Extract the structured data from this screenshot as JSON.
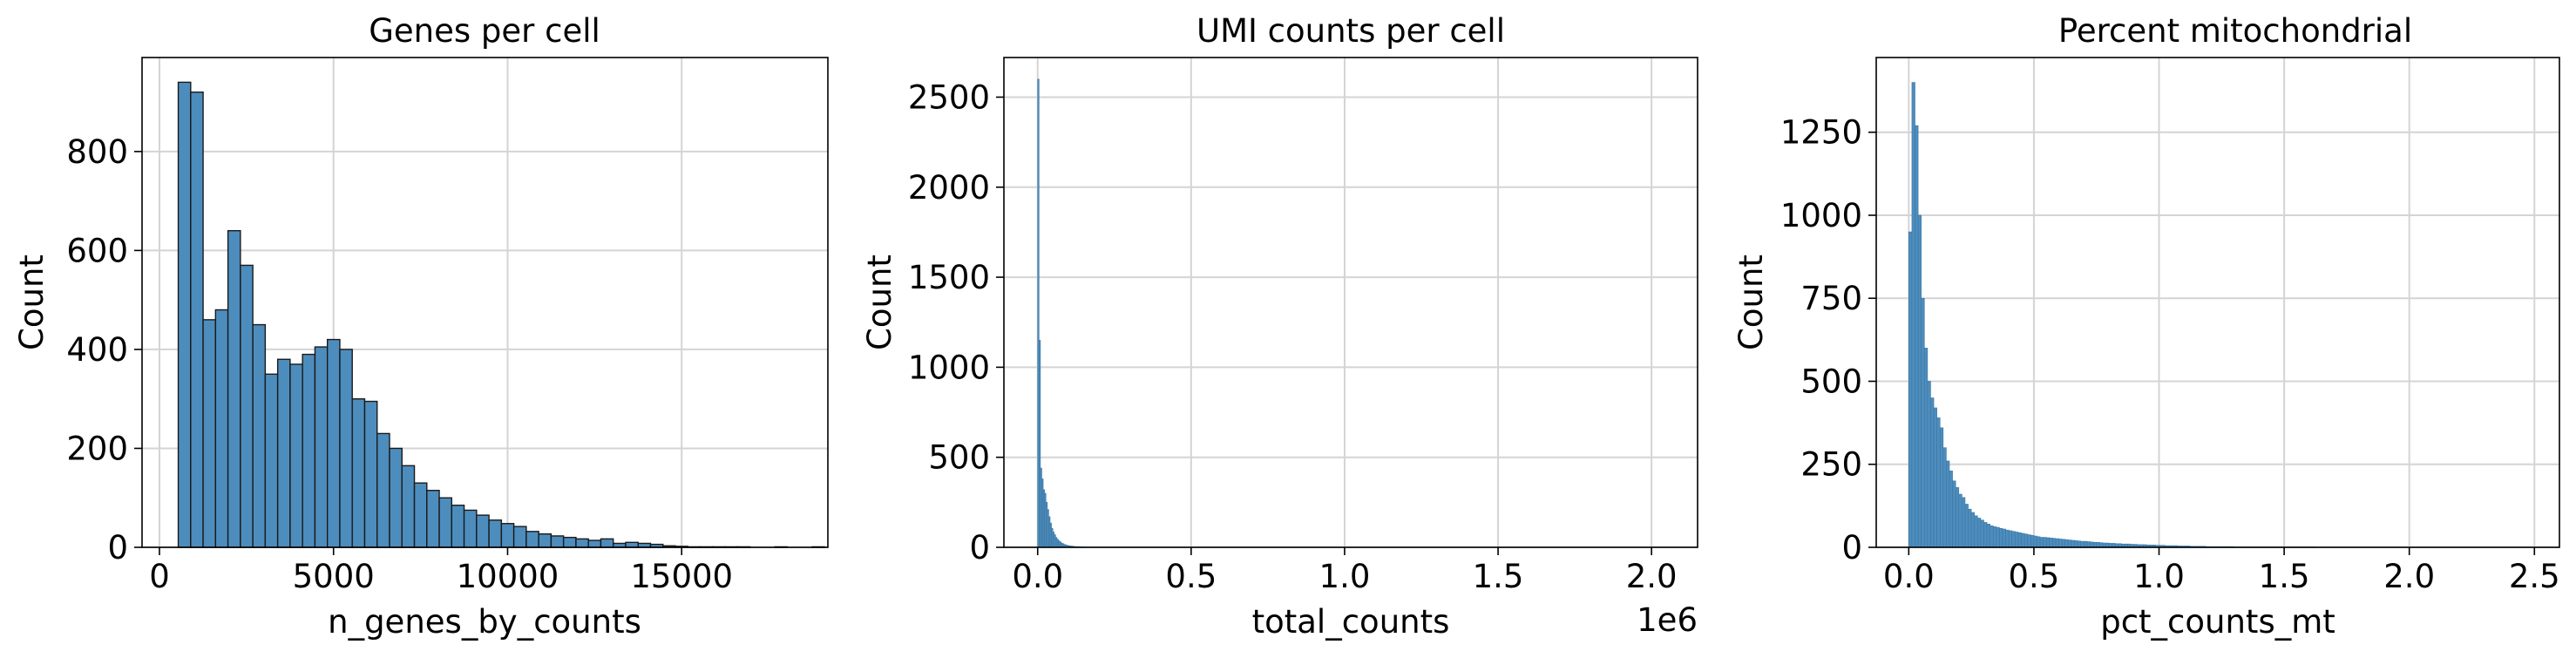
{
  "colors": {
    "bar_fill": "#4d8dbd",
    "bar_edge": "#1a1a1a",
    "grid": "#d4d4d4",
    "axes": "#000000"
  },
  "chart_data": [
    {
      "type": "bar",
      "title": "Genes per cell",
      "xlabel": "n_genes_by_counts",
      "ylabel": "Count",
      "xlim": [
        -500,
        19200
      ],
      "ylim": [
        0,
        990
      ],
      "xticks": [
        0,
        5000,
        10000,
        15000
      ],
      "xtick_labels": [
        "0",
        "5000",
        "10000",
        "15000"
      ],
      "yticks": [
        0,
        200,
        400,
        600,
        800
      ],
      "ytick_labels": [
        "0",
        "200",
        "400",
        "600",
        "800"
      ],
      "grid": true,
      "bin_start": 540,
      "bin_width": 357,
      "values": [
        940,
        920,
        460,
        480,
        640,
        570,
        450,
        350,
        380,
        370,
        390,
        405,
        420,
        400,
        300,
        295,
        230,
        200,
        165,
        130,
        115,
        100,
        85,
        75,
        65,
        55,
        48,
        42,
        32,
        27,
        23,
        20,
        17,
        14,
        17,
        8,
        10,
        8,
        6,
        3,
        2,
        1,
        1,
        1,
        1,
        1,
        0,
        0,
        1,
        0,
        0,
        1
      ],
      "bar_outline": true
    },
    {
      "type": "bar",
      "title": "UMI counts per cell",
      "xlabel": "total_counts",
      "ylabel": "Count",
      "axis_offset_label": "1e6",
      "xlim": [
        -110000,
        2150000
      ],
      "ylim": [
        0,
        2720
      ],
      "xticks": [
        0,
        500000,
        1000000,
        1500000,
        2000000
      ],
      "xtick_labels": [
        "0.0",
        "0.5",
        "1.0",
        "1.5",
        "2.0"
      ],
      "yticks": [
        0,
        500,
        1000,
        1500,
        2000,
        2500
      ],
      "ytick_labels": [
        "0",
        "500",
        "1000",
        "1500",
        "2000",
        "2500"
      ],
      "grid": true,
      "bin_start": 0,
      "bin_width": 4500,
      "values": [
        2600,
        1150,
        440,
        380,
        320,
        300,
        250,
        210,
        170,
        135,
        105,
        85,
        70,
        55,
        45,
        36,
        30,
        24,
        20,
        16,
        13,
        11,
        9,
        8,
        7,
        6,
        5,
        4,
        4,
        3,
        3,
        2,
        2,
        2,
        2,
        1,
        1,
        1,
        1,
        1,
        1,
        1,
        1,
        1,
        1,
        1,
        1,
        1,
        1,
        1,
        1,
        1,
        1,
        1,
        1,
        1,
        1,
        1,
        1,
        1
      ],
      "bar_outline": false
    },
    {
      "type": "bar",
      "title": "Percent mitochondrial",
      "xlabel": "pct_counts_mt",
      "ylabel": "Count",
      "xlim": [
        -0.13,
        2.6
      ],
      "ylim": [
        0,
        1475
      ],
      "xticks": [
        0,
        0.5,
        1.0,
        1.5,
        2.0,
        2.5
      ],
      "xtick_labels": [
        "0.0",
        "0.5",
        "1.0",
        "1.5",
        "2.0",
        "2.5"
      ],
      "yticks": [
        0,
        250,
        500,
        750,
        1000,
        1250
      ],
      "ytick_labels": [
        "0",
        "250",
        "500",
        "750",
        "1000",
        "1250"
      ],
      "grid": true,
      "bin_start": 0,
      "bin_width": 0.0125,
      "values": [
        950,
        1400,
        1270,
        1000,
        750,
        600,
        500,
        450,
        420,
        390,
        360,
        300,
        260,
        230,
        200,
        180,
        160,
        150,
        130,
        115,
        105,
        95,
        88,
        82,
        75,
        70,
        65,
        62,
        60,
        57,
        55,
        52,
        50,
        48,
        46,
        44,
        42,
        40,
        38,
        36,
        34,
        32,
        30,
        30,
        29,
        28,
        27,
        26,
        25,
        24,
        23,
        22,
        21,
        20,
        19,
        18,
        18,
        17,
        16,
        15,
        15,
        14,
        13,
        13,
        12,
        12,
        11,
        11,
        10,
        10,
        10,
        9,
        9,
        8,
        8,
        8,
        7,
        7,
        7,
        6,
        6,
        6,
        5,
        5,
        5,
        5,
        4,
        4,
        4,
        4,
        3,
        3,
        3,
        3,
        3,
        2,
        2,
        2,
        2,
        2,
        2,
        2,
        2,
        2,
        1,
        1,
        1,
        1,
        1,
        1,
        1,
        1,
        1,
        1,
        1,
        1,
        1,
        1,
        1,
        1,
        1,
        1,
        1,
        1,
        1,
        1,
        1,
        1,
        1,
        1
      ],
      "bar_outline": false
    }
  ]
}
